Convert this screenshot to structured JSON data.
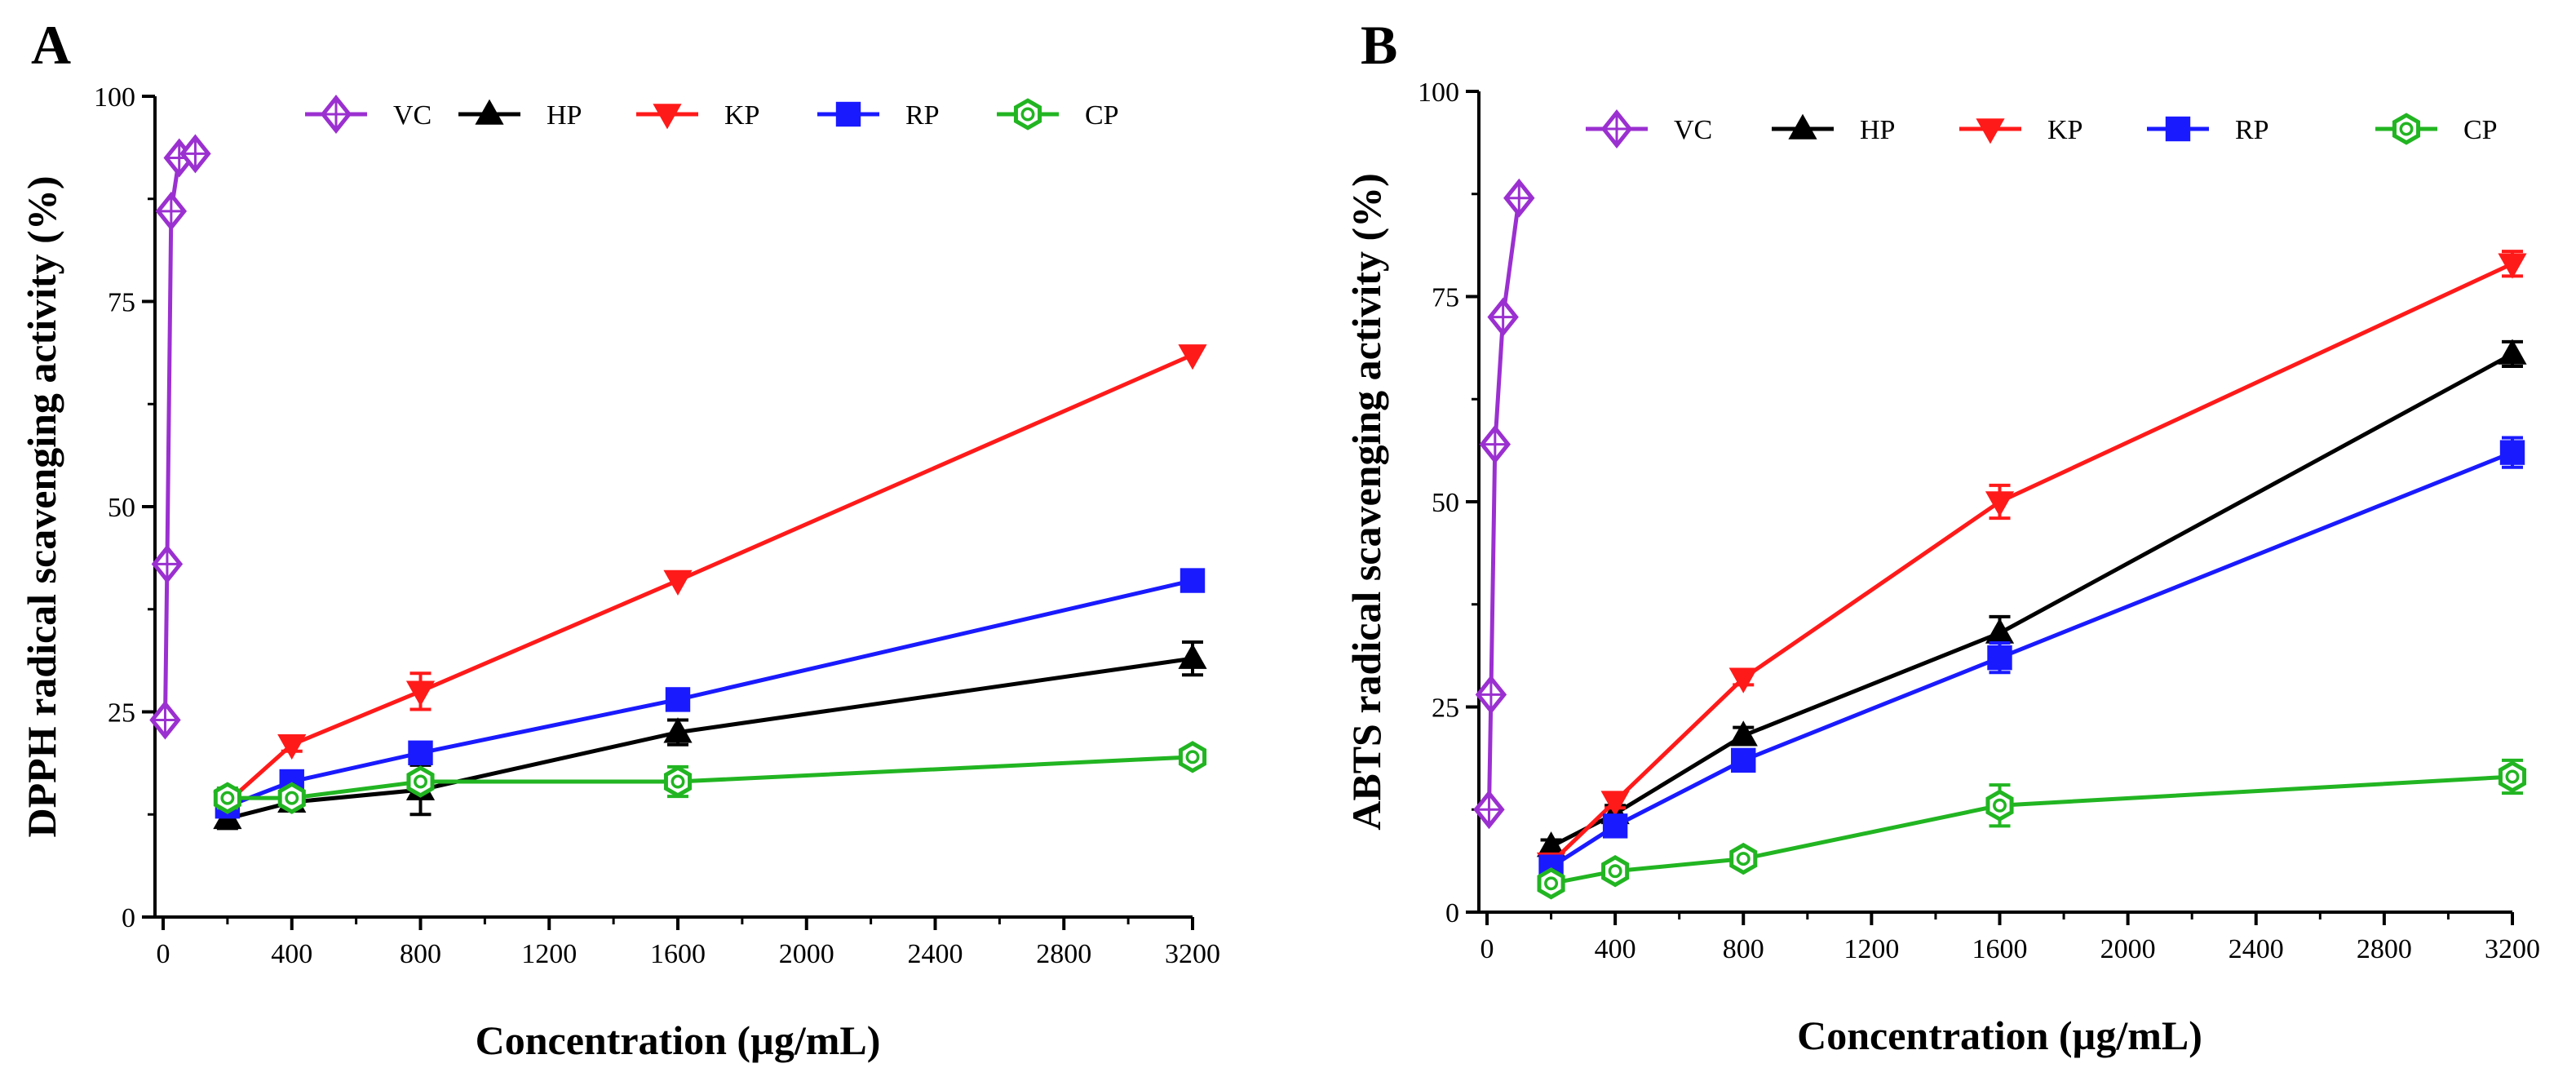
{
  "chart_data": [
    {
      "type": "line",
      "panel_label": "A",
      "xlabel": "Concentration (µg/mL)",
      "ylabel": "DPPH radical scavenging activity (%)",
      "xlim": [
        0,
        3200
      ],
      "ylim": [
        0,
        100
      ],
      "xticks": [
        0,
        400,
        800,
        1200,
        1600,
        2000,
        2400,
        2800,
        3200
      ],
      "yticks": [
        0,
        25,
        50,
        75,
        100
      ],
      "grid": false,
      "legend_position": "top",
      "series": [
        {
          "name": "VC",
          "color": "#9b30d0",
          "marker": "diamond-cross",
          "x": [
            6.25,
            12.5,
            25,
            50,
            100
          ],
          "y": [
            24,
            43,
            86,
            92.5,
            93
          ],
          "err": [
            0,
            0,
            0,
            0,
            0
          ]
        },
        {
          "name": "HP",
          "color": "#000000",
          "marker": "triangle-up",
          "x": [
            200,
            400,
            800,
            1600,
            3200
          ],
          "y": [
            12,
            14,
            15.5,
            22.5,
            31.5
          ],
          "err": [
            1.2,
            1,
            3,
            1.5,
            2
          ]
        },
        {
          "name": "KP",
          "color": "#ff1a1a",
          "marker": "triangle-down",
          "x": [
            200,
            400,
            800,
            1600,
            3200
          ],
          "y": [
            14,
            21,
            27.5,
            41,
            68.5
          ],
          "err": [
            1,
            0.8,
            2.2,
            0.5,
            0.5
          ]
        },
        {
          "name": "RP",
          "color": "#1a1aff",
          "marker": "square",
          "x": [
            200,
            400,
            800,
            1600,
            3200
          ],
          "y": [
            13.5,
            16.5,
            20,
            26.5,
            41
          ],
          "err": [
            1,
            0.8,
            0.8,
            0.8,
            0.5
          ]
        },
        {
          "name": "CP",
          "color": "#22b522",
          "marker": "circle-hex",
          "x": [
            200,
            400,
            800,
            1600,
            3200
          ],
          "y": [
            14.5,
            14.5,
            16.5,
            16.5,
            19.5
          ],
          "err": [
            1.2,
            0.8,
            0.8,
            1.8,
            0.5
          ]
        }
      ]
    },
    {
      "type": "line",
      "panel_label": "B",
      "xlabel": "Concentration (µg/mL)",
      "ylabel": "ABTS radical scavenging activity (%)",
      "xlim": [
        0,
        3200
      ],
      "ylim": [
        0,
        100
      ],
      "xticks": [
        0,
        400,
        800,
        1200,
        1600,
        2000,
        2400,
        2800,
        3200
      ],
      "yticks": [
        0,
        25,
        50,
        75,
        100
      ],
      "grid": false,
      "legend_position": "top",
      "series": [
        {
          "name": "VC",
          "color": "#9b30d0",
          "marker": "diamond-cross",
          "x": [
            6.25,
            12.5,
            25,
            50,
            100
          ],
          "y": [
            12.5,
            26.5,
            57,
            72.5,
            87
          ],
          "err": [
            0,
            0,
            0,
            0,
            0
          ]
        },
        {
          "name": "HP",
          "color": "#000000",
          "marker": "triangle-up",
          "x": [
            200,
            400,
            800,
            1600,
            3200
          ],
          "y": [
            8,
            12,
            21.5,
            34,
            68
          ],
          "err": [
            0.8,
            1,
            1,
            2,
            1.5
          ]
        },
        {
          "name": "KP",
          "color": "#ff1a1a",
          "marker": "triangle-down",
          "x": [
            200,
            400,
            800,
            1600,
            3200
          ],
          "y": [
            6,
            13.5,
            28.5,
            50,
            79
          ],
          "err": [
            0.8,
            0.8,
            0.8,
            2,
            1.5
          ]
        },
        {
          "name": "RP",
          "color": "#1a1aff",
          "marker": "square",
          "x": [
            200,
            400,
            800,
            1600,
            3200
          ],
          "y": [
            5.5,
            10.5,
            18.5,
            31,
            56
          ],
          "err": [
            0.8,
            0.8,
            1,
            1.8,
            1.8
          ]
        },
        {
          "name": "CP",
          "color": "#22b522",
          "marker": "circle-hex",
          "x": [
            200,
            400,
            800,
            1600,
            3200
          ],
          "y": [
            3.5,
            5,
            6.5,
            13,
            16.5
          ],
          "err": [
            0.5,
            0.5,
            0.5,
            2.5,
            2
          ]
        }
      ]
    }
  ]
}
